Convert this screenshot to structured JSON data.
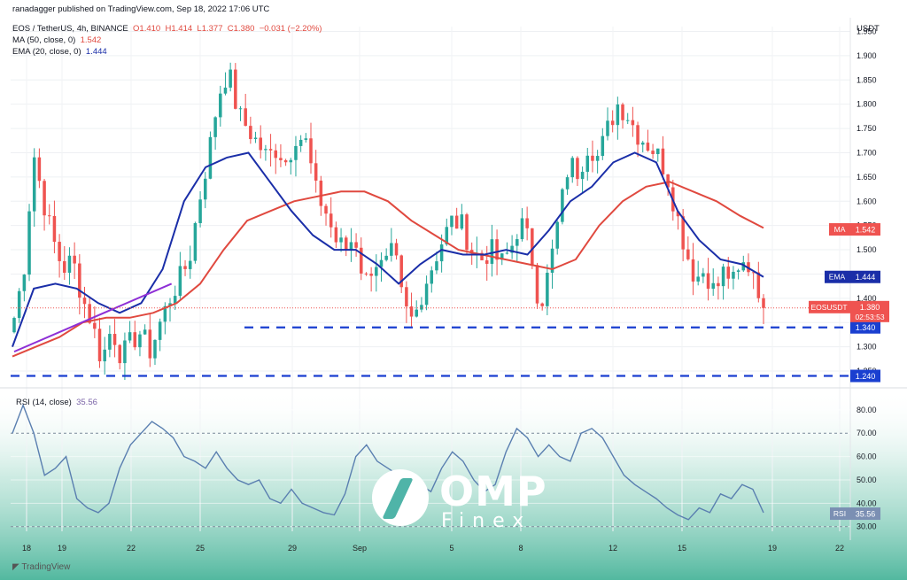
{
  "header": {
    "publisher": "ranadagger published on TradingView.com, Sep 18, 2022 17:06 UTC",
    "symbol_line": "EOS / TetherUS, 4h, BINANCE",
    "ohlc": {
      "o": "O1.410",
      "h": "H1.414",
      "l": "L1.377",
      "c": "C1.380",
      "chg": "−0.031 (−2.20%)"
    },
    "ma_label": "MA (50, close, 0)",
    "ma_value": "1.542",
    "ema_label": "EMA (20, close, 0)",
    "ema_value": "1.444",
    "rsi_label": "RSI (14, close)",
    "rsi_value": "35.56",
    "currency": "USDT",
    "footer_logo": "TradingView"
  },
  "watermark": {
    "brand": "OMP",
    "sub": "Finex"
  },
  "colors": {
    "up": "#26a69a",
    "down": "#ef5350",
    "ma": "#e0493f",
    "ema": "#1a2ea8",
    "support": "#1a3fd0",
    "trendline": "#8e2fd6",
    "rsi": "#5a7fb0"
  },
  "chart_data": [
    {
      "type": "candlestick",
      "title": "EOS / TetherUS, 4h, BINANCE",
      "ylim": [
        1.23,
        1.96
      ],
      "y_ticks": [
        "1.950",
        "1.900",
        "1.850",
        "1.800",
        "1.750",
        "1.700",
        "1.650",
        "1.600",
        "1.550",
        "1.500",
        "1.450",
        "1.400",
        "1.350",
        "1.300",
        "1.250"
      ],
      "x_ticks": [
        "18",
        "19",
        "22",
        "25",
        "29",
        "Sep",
        "5",
        "8",
        "12",
        "15",
        "19",
        "22"
      ],
      "price_label": {
        "name": "EOSUSDT",
        "value": "1.380",
        "countdown": "02:53:53"
      },
      "support_levels": [
        {
          "value": 1.34,
          "label": "1.340"
        },
        {
          "value": 1.24,
          "label": "1.240"
        }
      ],
      "badges": [
        {
          "name": "MA",
          "value": "1.542"
        },
        {
          "name": "EMA",
          "value": "1.444"
        }
      ],
      "anchors": [
        1.36,
        1.46,
        1.7,
        1.6,
        1.52,
        1.46,
        1.48,
        1.4,
        1.35,
        1.27,
        1.34,
        1.28,
        1.31,
        1.33,
        1.29,
        1.35,
        1.4,
        1.44,
        1.48,
        1.6,
        1.7,
        1.82,
        1.87,
        1.78,
        1.75,
        1.72,
        1.69,
        1.71,
        1.68,
        1.74,
        1.72,
        1.62,
        1.58,
        1.52,
        1.5,
        1.53,
        1.43,
        1.48,
        1.46,
        1.5,
        1.38,
        1.35,
        1.42,
        1.47,
        1.52,
        1.56,
        1.55,
        1.5,
        1.48,
        1.5,
        1.47,
        1.5,
        1.56,
        1.51,
        1.38,
        1.46,
        1.57,
        1.68,
        1.66,
        1.72,
        1.69,
        1.75,
        1.8,
        1.78,
        1.74,
        1.72,
        1.7,
        1.66,
        1.58,
        1.5,
        1.44,
        1.46,
        1.41,
        1.46,
        1.43,
        1.47,
        1.46,
        1.38
      ],
      "ma_points": [
        1.28,
        1.3,
        1.32,
        1.35,
        1.36,
        1.36,
        1.37,
        1.39,
        1.43,
        1.5,
        1.56,
        1.58,
        1.6,
        1.61,
        1.62,
        1.62,
        1.6,
        1.56,
        1.53,
        1.5,
        1.49,
        1.48,
        1.47,
        1.46,
        1.48,
        1.55,
        1.6,
        1.63,
        1.64,
        1.62,
        1.6,
        1.57,
        1.545
      ],
      "ema_points": [
        1.3,
        1.42,
        1.43,
        1.42,
        1.39,
        1.37,
        1.39,
        1.46,
        1.6,
        1.67,
        1.69,
        1.7,
        1.64,
        1.58,
        1.53,
        1.5,
        1.5,
        1.47,
        1.43,
        1.47,
        1.5,
        1.49,
        1.49,
        1.5,
        1.49,
        1.54,
        1.6,
        1.63,
        1.68,
        1.7,
        1.68,
        1.58,
        1.52,
        1.48,
        1.47,
        1.444
      ],
      "trendline": [
        [
          0.0,
          1.29
        ],
        [
          0.21,
          1.43
        ]
      ]
    },
    {
      "type": "line",
      "title": "RSI (14, close)",
      "ylim": [
        28,
        86
      ],
      "y_ticks": [
        "80.00",
        "70.00",
        "60.00",
        "50.00",
        "40.00",
        "30.00"
      ],
      "last_value": "35.56",
      "series": [
        {
          "values": [
            70,
            82,
            70,
            52,
            55,
            60,
            42,
            38,
            36,
            40,
            55,
            65,
            70,
            75,
            72,
            68,
            60,
            58,
            55,
            62,
            55,
            50,
            48,
            50,
            42,
            40,
            46,
            40,
            38,
            36,
            35,
            44,
            60,
            65,
            58,
            55,
            52,
            50,
            48,
            45,
            55,
            62,
            58,
            50,
            45,
            48,
            62,
            72,
            68,
            60,
            65,
            60,
            58,
            70,
            72,
            68,
            60,
            52,
            48,
            45,
            42,
            38,
            35,
            33,
            38,
            36,
            44,
            42,
            48,
            46,
            36
          ]
        }
      ]
    }
  ]
}
